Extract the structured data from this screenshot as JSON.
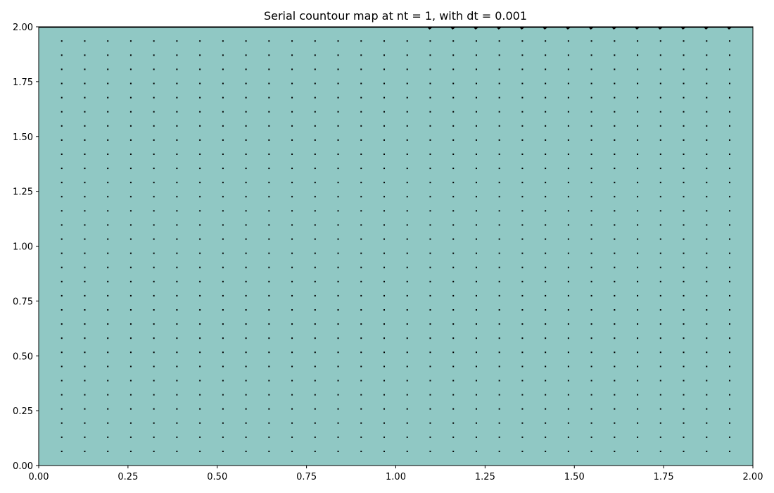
{
  "chart_data": {
    "type": "heatmap",
    "title": "Serial countour map at nt = 1, with dt = 0.001",
    "xlabel": "",
    "ylabel": "",
    "xlim": [
      0.0,
      2.0
    ],
    "ylim": [
      0.0,
      2.0
    ],
    "x_ticks": [
      "0.00",
      "0.25",
      "0.50",
      "0.75",
      "1.00",
      "1.25",
      "1.50",
      "1.75",
      "2.00"
    ],
    "y_ticks": [
      "0.00",
      "0.25",
      "0.50",
      "0.75",
      "1.00",
      "1.25",
      "1.50",
      "1.75",
      "2.00"
    ],
    "grid": false,
    "legend": "none",
    "field_color": "#90c8c4",
    "arrow_color": "#000000",
    "quiver": {
      "grid_size": 31,
      "spacing": 0.0645,
      "lid_velocity_top": 1.0,
      "interior_magnitude": 0.0,
      "note_lid_region_x_start": 1.05
    }
  }
}
